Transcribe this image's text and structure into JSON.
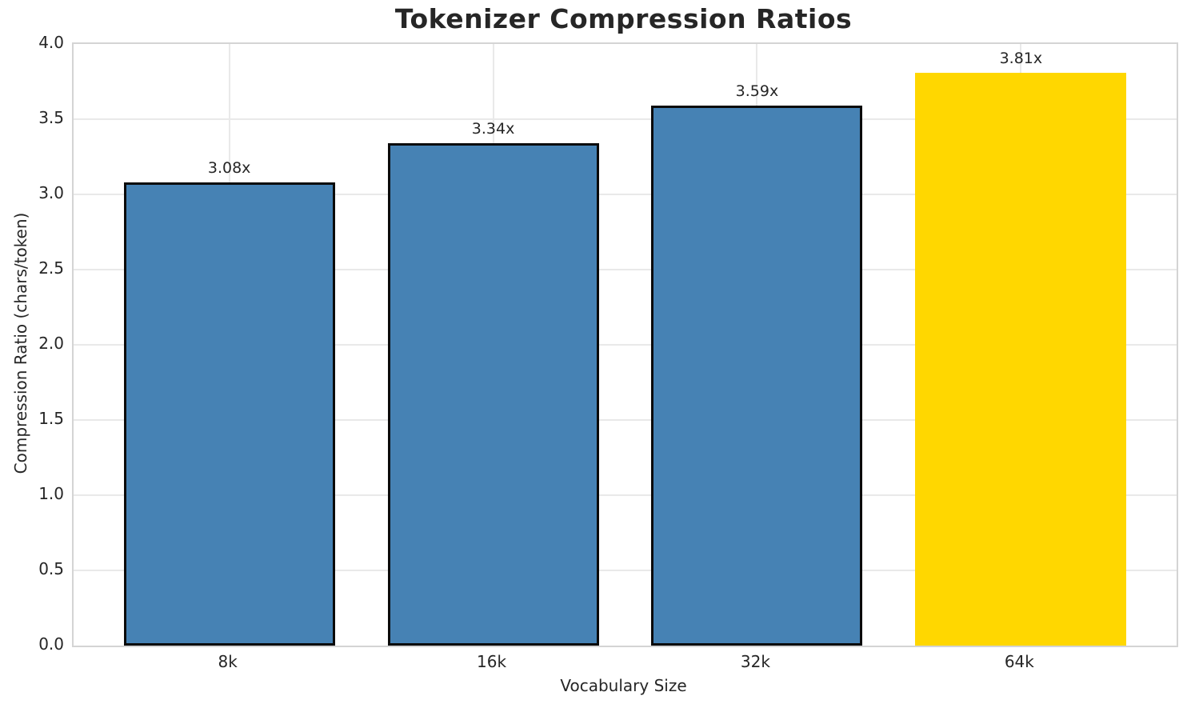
{
  "chart_data": {
    "type": "bar",
    "title": "Tokenizer Compression Ratios",
    "xlabel": "Vocabulary Size",
    "ylabel": "Compression Ratio (chars/token)",
    "categories": [
      "8k",
      "16k",
      "32k",
      "64k"
    ],
    "values": [
      3.08,
      3.34,
      3.59,
      3.81
    ],
    "bar_labels": [
      "3.08x",
      "3.34x",
      "3.59x",
      "3.81x"
    ],
    "ylim": [
      0.0,
      4.0
    ],
    "yticks": [
      0.0,
      0.5,
      1.0,
      1.5,
      2.0,
      2.5,
      3.0,
      3.5,
      4.0
    ],
    "grid": "both",
    "legend_visible": false,
    "highlight_index": 3,
    "colors": {
      "bar_default": "#4682B4",
      "bar_highlight": "#FFD700",
      "bar_edge": "#0a0a0a",
      "grid": "#e9e9e9",
      "spine": "#d4d4d4",
      "text": "#262626"
    }
  }
}
